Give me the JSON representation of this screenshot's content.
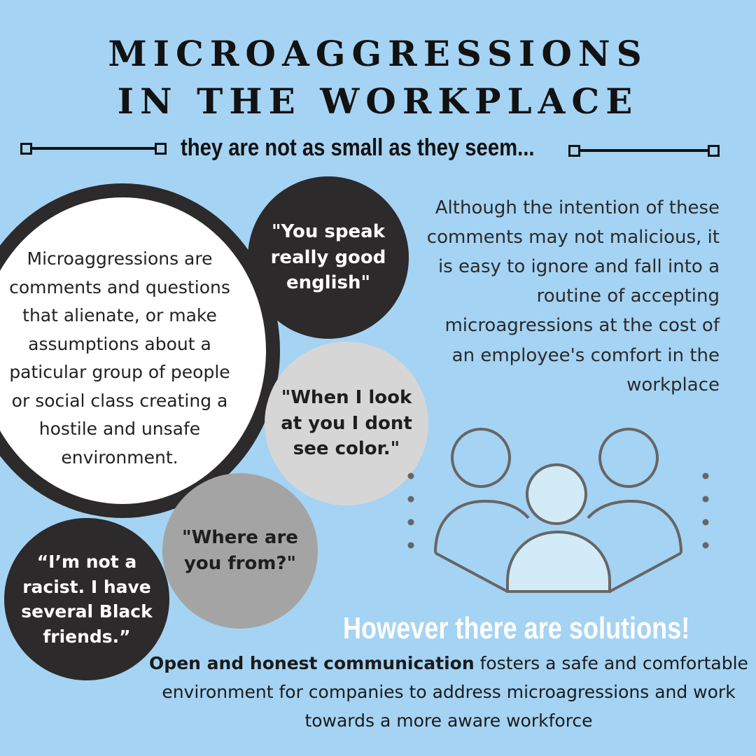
{
  "header": {
    "title_line1": "MICROAGGRESSIONS",
    "title_line2": "IN THE WORKPLACE",
    "subtitle": "they are not as small as they seem..."
  },
  "definition": {
    "text": "Microaggressions are comments and questions that alienate, or make assumptions about a paticular group of people or social class creating a hostile and unsafe environment."
  },
  "quotes": {
    "q1": "\"You speak really good english\"",
    "q2": "\"When I look at you I dont see color.\"",
    "q3": "\"Where are you from?\"",
    "q4": "“I’m not a racist. I have several Black friends.”"
  },
  "intent_text": "Although the intention of these comments may not malicious, it is easy to ignore and fall into a routine of accepting microagressions at the cost of an employee's comfort in the workplace",
  "solutions": {
    "heading": "However there are solutions!",
    "body_bold": "Open and honest communication",
    "body_rest": " fosters a safe and comfortable environment for companies to address microagressions and work towards a more aware workforce"
  },
  "colors": {
    "background": "#a5d3f3",
    "dark_circle": "#2c2a2a",
    "light_gray_circle": "#d6d6d6",
    "mid_gray_circle": "#a4a4a4",
    "person_fill": "#d3ebf7",
    "outline": "#666666"
  },
  "icons": {
    "people": "people-group-icon"
  }
}
